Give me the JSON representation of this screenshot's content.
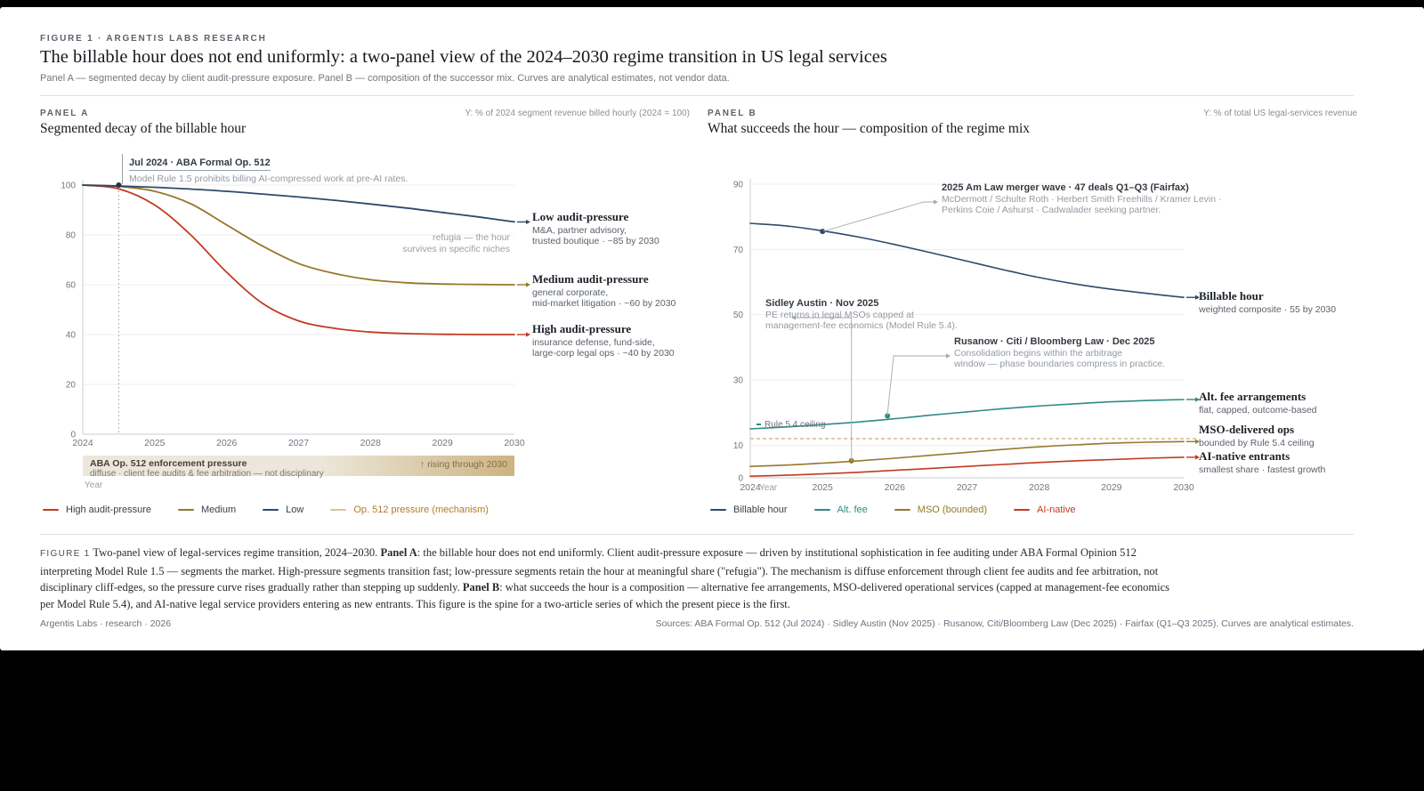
{
  "colors": {
    "navy": "#2d4a6b",
    "olive": "#97782b",
    "red": "#c23a20",
    "teal": "#2e8c82",
    "tan": "#d8c49a",
    "tan_text": "#b07c26",
    "ink": "#3a4049",
    "black_dot": "#2b2f36",
    "band_from": "#ece7da",
    "band_to": "#cdb382",
    "ceiling": "#c9ad72",
    "grid": "#efefef",
    "axis": "#c9ccd0",
    "tick": "#71777f",
    "leader": "#a5aab1"
  },
  "page": {
    "eyebrow": "FIGURE 1 · ARGENTIS LABS RESEARCH",
    "title": "The billable hour does not end uniformly: a two-panel view of the 2024–2030 regime transition in US legal services",
    "subtitle": "Panel A — segmented decay by client audit-pressure exposure. Panel B — composition of the successor mix. Curves are analytical estimates, not vendor data."
  },
  "panel_a": {
    "label": "PANEL A",
    "title": "Segmented decay of the billable hour",
    "y_axis_note": "Y: % of 2024 segment revenue billed hourly (2024 = 100)",
    "x_label": "Year",
    "event": {
      "title": "Jul 2024 · ABA Formal Op. 512",
      "body": "Model Rule 1.5 prohibits billing AI-compressed work at pre-AI rates."
    },
    "refugia": {
      "line1": "refugia — the hour",
      "line2": "survives in specific niches"
    },
    "series_labels": [
      {
        "title": "Low audit-pressure",
        "sub1": "M&A, partner advisory,",
        "sub2": "trusted boutique · ~85 by 2030"
      },
      {
        "title": "Medium audit-pressure",
        "sub1": "general corporate,",
        "sub2": "mid-market litigation · ~60 by 2030"
      },
      {
        "title": "High audit-pressure",
        "sub1": "insurance defense, fund-side,",
        "sub2": "large-corp legal ops · ~40 by 2030"
      }
    ],
    "pressure_band": {
      "title": "ABA Op. 512 enforcement pressure",
      "sub": "diffuse · client fee audits & fee arbitration — not disciplinary",
      "right": "↑ rising through 2030"
    },
    "legend": [
      {
        "label": "High audit-pressure",
        "color": "#c23a20",
        "text_color": "#3a4049"
      },
      {
        "label": "Medium",
        "color": "#97782b",
        "text_color": "#3a4049"
      },
      {
        "label": "Low",
        "color": "#2d4a6b",
        "text_color": "#3a4049"
      },
      {
        "label": "Op. 512 pressure (mechanism)",
        "color": "#d8c49a",
        "text_color": "#b07c26"
      }
    ]
  },
  "panel_b": {
    "label": "PANEL B",
    "title": "What succeeds the hour — composition of the regime mix",
    "y_axis_note": "Y: % of total US legal-services revenue",
    "x_label": "Year",
    "ceiling_label": "Rule 5.4 ceiling",
    "annotations": {
      "merger": {
        "title": "2025 Am Law merger wave · 47 deals Q1–Q3 (Fairfax)",
        "body1": "McDermott / Schulte Roth · Herbert Smith Freehills / Kramer Levin ·",
        "body2": "Perkins Coie / Ashurst · Cadwalader seeking partner."
      },
      "sidley": {
        "title": "Sidley Austin · Nov 2025",
        "body1": "PE returns in legal MSOs capped at",
        "body2": "management-fee economics (Model Rule 5.4)."
      },
      "rusanow": {
        "title": "Rusanow · Citi / Bloomberg Law · Dec 2025",
        "body1": "Consolidation begins within the arbitrage",
        "body2": "window — phase boundaries compress in practice."
      }
    },
    "series_labels": [
      {
        "title": "Billable hour",
        "sub": "weighted composite · 55 by 2030"
      },
      {
        "title": "Alt. fee arrangements",
        "sub": "flat, capped, outcome-based"
      },
      {
        "title": "MSO-delivered ops",
        "sub": "bounded by Rule 5.4 ceiling"
      },
      {
        "title": "AI-native entrants",
        "sub": "smallest share · fastest growth"
      }
    ],
    "legend": [
      {
        "label": "Billable hour",
        "color": "#2d4a6b",
        "text_color": "#3a4049"
      },
      {
        "label": "Alt. fee",
        "color": "#2e8c82",
        "text_color": "#2e8c82"
      },
      {
        "label": "MSO (bounded)",
        "color": "#97782b",
        "text_color": "#97782b"
      },
      {
        "label": "AI-native",
        "color": "#c23a20",
        "text_color": "#c23a20"
      }
    ]
  },
  "chart_data": [
    {
      "type": "line",
      "panel": "A",
      "title": "Segmented decay of the billable hour",
      "xlabel": "Year",
      "ylabel": "% of 2024 segment revenue billed hourly (2024 = 100)",
      "xlim": [
        2024,
        2030
      ],
      "ylim": [
        0,
        100
      ],
      "xticks": [
        2024,
        2025,
        2026,
        2027,
        2028,
        2029,
        2030
      ],
      "yticks": [
        0,
        20,
        40,
        60,
        80,
        100
      ],
      "x": [
        2024,
        2024.5,
        2025,
        2025.5,
        2026,
        2026.5,
        2027,
        2027.5,
        2028,
        2028.5,
        2029,
        2029.5,
        2030
      ],
      "series": [
        {
          "name": "High audit-pressure",
          "color": "#c23a20",
          "values": [
            100,
            98.5,
            92,
            80,
            65,
            52.5,
            45.5,
            42.5,
            41,
            40.4,
            40.1,
            40,
            40
          ]
        },
        {
          "name": "Medium audit-pressure",
          "color": "#97782b",
          "values": [
            100,
            99.5,
            97.5,
            92.5,
            84,
            75.5,
            68.5,
            64.5,
            62,
            60.8,
            60.3,
            60.1,
            60
          ]
        },
        {
          "name": "Low audit-pressure",
          "color": "#2d4a6b",
          "values": [
            100,
            99.6,
            99.1,
            98.4,
            97.5,
            96.4,
            95.2,
            93.9,
            92.4,
            90.8,
            89,
            87.2,
            85.2
          ]
        }
      ],
      "markers": [
        {
          "x": 2024.5,
          "v": 100,
          "color": "#2b2f36",
          "note": "Jul 2024 · ABA Formal Op. 512"
        }
      ],
      "event_line_x": 2024.5,
      "grid": true,
      "legend_position": "bottom"
    },
    {
      "type": "line",
      "panel": "B",
      "title": "What succeeds the hour — composition of the regime mix",
      "xlabel": "Year",
      "ylabel": "% of total US legal-services revenue",
      "xlim": [
        2024,
        2030
      ],
      "ylim": [
        0,
        90
      ],
      "xticks": [
        2024,
        2025,
        2026,
        2027,
        2028,
        2029,
        2030
      ],
      "yticks": [
        0,
        10,
        30,
        50,
        70,
        90
      ],
      "x": [
        2024,
        2024.5,
        2025,
        2025.5,
        2026,
        2026.5,
        2027,
        2027.5,
        2028,
        2028.5,
        2029,
        2029.5,
        2030
      ],
      "series": [
        {
          "name": "Billable hour",
          "color": "#2d4a6b",
          "values": [
            78,
            77.2,
            75.7,
            73.8,
            71.5,
            69,
            66.4,
            63.8,
            61.4,
            59.4,
            57.8,
            56.5,
            55.3
          ]
        },
        {
          "name": "Alt. fee arrangements",
          "color": "#2e8c82",
          "values": [
            15,
            15.6,
            16.3,
            17.1,
            18.1,
            19.2,
            20.2,
            21.2,
            22,
            22.7,
            23.3,
            23.7,
            24
          ]
        },
        {
          "name": "MSO-delivered ops",
          "color": "#97782b",
          "values": [
            3.5,
            3.9,
            4.5,
            5.2,
            6,
            6.9,
            7.8,
            8.7,
            9.5,
            10.1,
            10.6,
            10.9,
            11.1
          ]
        },
        {
          "name": "AI-native entrants",
          "color": "#c23a20",
          "values": [
            0.5,
            0.8,
            1.2,
            1.7,
            2.3,
            2.9,
            3.5,
            4.1,
            4.7,
            5.2,
            5.6,
            6,
            6.3
          ]
        }
      ],
      "ceiling": {
        "value": 12,
        "label": "Rule 5.4 ceiling",
        "style": "dashed",
        "color": "#c9ad72"
      },
      "markers": [
        {
          "x": 2025,
          "v": 75.5,
          "color": "#2d4a6b",
          "note": "2025 Am Law merger wave"
        },
        {
          "x": 2025.4,
          "v": 5.2,
          "color": "#97782b",
          "note": "Sidley Austin · Nov 2025"
        },
        {
          "x": 2025.9,
          "v": 19,
          "color": "#2e8c82",
          "note": "Rusanow · Citi / Bloomberg Law · Dec 2025"
        }
      ],
      "grid": true,
      "legend_position": "bottom"
    }
  ],
  "caption": {
    "segments": [
      {
        "style": "tag",
        "text": "FIGURE 1"
      },
      {
        "style": "plain",
        "text": "   Two-panel view of legal-services regime transition, 2024–2030. "
      },
      {
        "style": "bold",
        "text": "Panel A"
      },
      {
        "style": "plain",
        "text": ": the billable hour does not end uniformly. Client audit-pressure exposure — driven by institutional sophistication in fee auditing under ABA Formal Opinion 512 interpreting Model Rule 1.5 — segments the market. High-pressure segments transition fast; low-pressure segments retain the hour at meaningful share (\"refugia\"). The mechanism is diffuse enforcement through client fee audits and fee arbitration, not disciplinary cliff-edges, so the pressure curve rises gradually rather than stepping up suddenly. "
      },
      {
        "style": "bold",
        "text": "Panel B"
      },
      {
        "style": "plain",
        "text": ": what succeeds the hour is a composition — alternative fee arrangements, MSO-delivered operational services (capped at management-fee economics per Model Rule 5.4), and AI-native legal service providers entering as new entrants. This figure is the spine for a two-article series of which the present piece is the first."
      }
    ]
  },
  "footer": {
    "left": "Argentis Labs · research · 2026",
    "right": "Sources: ABA Formal Op. 512 (Jul 2024) · Sidley Austin (Nov 2025) · Rusanow, Citi/Bloomberg Law (Dec 2025) · Fairfax (Q1–Q3 2025). Curves are analytical estimates."
  }
}
